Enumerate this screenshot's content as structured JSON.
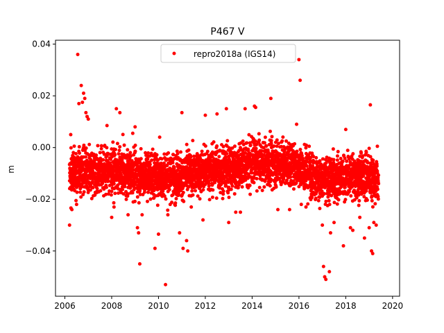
{
  "chart_data": {
    "type": "scatter",
    "title": "P467 V",
    "xlabel": "",
    "ylabel": "m",
    "xlim": [
      2005.6,
      2020.3
    ],
    "ylim": [
      -0.0575,
      0.0415
    ],
    "xticks": [
      2006,
      2008,
      2010,
      2012,
      2014,
      2016,
      2018,
      2020
    ],
    "xtick_labels": [
      "2006",
      "2008",
      "2010",
      "2012",
      "2014",
      "2016",
      "2018",
      "2020"
    ],
    "yticks": [
      -0.04,
      -0.02,
      0.0,
      0.02,
      0.04
    ],
    "ytick_labels": [
      "−0.04",
      "−0.02",
      "0.00",
      "0.02",
      "0.04"
    ],
    "grid": false,
    "legend_position": "upper-center",
    "series": [
      {
        "name": "repro2018a (IGS14)",
        "color": "#ff0000",
        "marker": "circle",
        "data_range": [
          2006.2,
          2019.4
        ],
        "band_center_by_year": [
          [
            2006.2,
            -0.01
          ],
          [
            2007.0,
            -0.009
          ],
          [
            2008.0,
            -0.009
          ],
          [
            2009.0,
            -0.01
          ],
          [
            2010.0,
            -0.011
          ],
          [
            2011.0,
            -0.011
          ],
          [
            2012.0,
            -0.009
          ],
          [
            2013.0,
            -0.008
          ],
          [
            2014.0,
            -0.006
          ],
          [
            2015.0,
            -0.006
          ],
          [
            2016.0,
            -0.007
          ],
          [
            2017.0,
            -0.013
          ],
          [
            2018.0,
            -0.011
          ],
          [
            2019.0,
            -0.011
          ],
          [
            2019.4,
            -0.013
          ]
        ],
        "band_spread": 0.006,
        "outliers": [
          [
            2006.2,
            -0.03
          ],
          [
            2006.25,
            0.005
          ],
          [
            2006.3,
            -0.024
          ],
          [
            2006.55,
            0.036
          ],
          [
            2006.6,
            0.017
          ],
          [
            2006.7,
            0.024
          ],
          [
            2006.75,
            0.0175
          ],
          [
            2006.8,
            0.021
          ],
          [
            2006.85,
            0.019
          ],
          [
            2006.9,
            0.0135
          ],
          [
            2006.95,
            0.012
          ],
          [
            2006.5,
            -0.022
          ],
          [
            2007.0,
            0.011
          ],
          [
            2007.8,
            0.0085
          ],
          [
            2008.0,
            -0.027
          ],
          [
            2008.1,
            -0.023
          ],
          [
            2008.2,
            0.015
          ],
          [
            2008.35,
            0.0135
          ],
          [
            2008.7,
            -0.026
          ],
          [
            2008.9,
            0.0055
          ],
          [
            2009.0,
            0.008
          ],
          [
            2009.1,
            -0.031
          ],
          [
            2009.15,
            -0.033
          ],
          [
            2009.2,
            -0.045
          ],
          [
            2009.3,
            -0.026
          ],
          [
            2009.85,
            -0.039
          ],
          [
            2010.0,
            -0.0335
          ],
          [
            2010.05,
            0.004
          ],
          [
            2010.3,
            -0.053
          ],
          [
            2010.4,
            -0.026
          ],
          [
            2010.5,
            -0.022
          ],
          [
            2010.9,
            -0.033
          ],
          [
            2011.0,
            0.0135
          ],
          [
            2011.05,
            -0.039
          ],
          [
            2011.2,
            -0.036
          ],
          [
            2011.25,
            -0.04
          ],
          [
            2011.4,
            -0.023
          ],
          [
            2011.9,
            -0.028
          ],
          [
            2012.0,
            0.0125
          ],
          [
            2012.5,
            0.013
          ],
          [
            2012.9,
            0.015
          ],
          [
            2013.0,
            -0.029
          ],
          [
            2013.3,
            -0.025
          ],
          [
            2013.5,
            -0.025
          ],
          [
            2013.7,
            0.015
          ],
          [
            2014.1,
            0.016
          ],
          [
            2014.15,
            0.0155
          ],
          [
            2014.8,
            0.019
          ],
          [
            2015.1,
            -0.024
          ],
          [
            2015.6,
            -0.024
          ],
          [
            2015.9,
            0.009
          ],
          [
            2016.0,
            0.034
          ],
          [
            2016.05,
            0.026
          ],
          [
            2016.1,
            -0.022
          ],
          [
            2016.3,
            -0.023
          ],
          [
            2017.0,
            -0.03
          ],
          [
            2017.05,
            -0.046
          ],
          [
            2017.1,
            -0.05
          ],
          [
            2017.15,
            -0.051
          ],
          [
            2017.3,
            -0.048
          ],
          [
            2017.35,
            -0.033
          ],
          [
            2017.5,
            -0.029
          ],
          [
            2017.9,
            -0.038
          ],
          [
            2018.0,
            0.007
          ],
          [
            2018.2,
            -0.031
          ],
          [
            2018.3,
            -0.032
          ],
          [
            2018.6,
            -0.027
          ],
          [
            2018.8,
            -0.035
          ],
          [
            2019.0,
            -0.031
          ],
          [
            2019.05,
            0.0165
          ],
          [
            2019.1,
            -0.04
          ],
          [
            2019.15,
            -0.041
          ],
          [
            2019.2,
            -0.029
          ],
          [
            2019.35,
            0.0005
          ],
          [
            2019.3,
            -0.03
          ]
        ]
      }
    ]
  }
}
